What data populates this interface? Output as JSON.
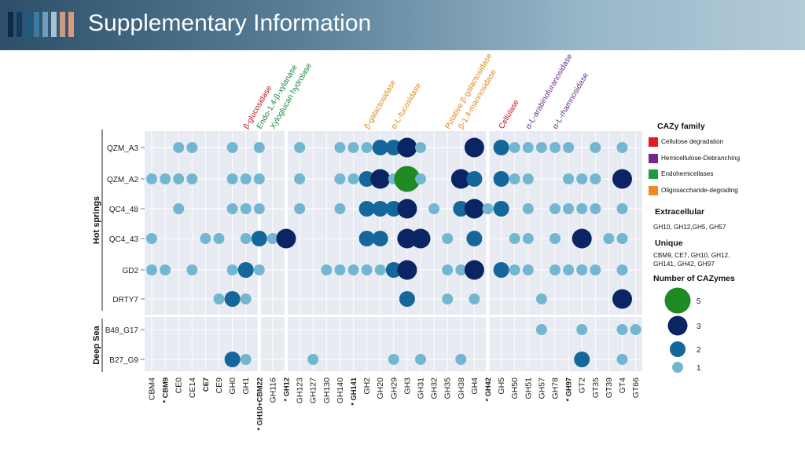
{
  "slide": {
    "title": "Supplementary Information",
    "stripe_colors": [
      "#0f2a48",
      "#123a5c",
      "#1e5b80",
      "#3b7ca2",
      "#6e9eba",
      "#a6c2d2",
      "#c99a86",
      "#d99a7a"
    ]
  },
  "chart_data": {
    "type": "scatter",
    "x_categories": [
      "CBM4",
      "* CBM9",
      "CE0",
      "CE14",
      "CE7",
      "CE9",
      "GH0",
      "GH1",
      "* GH10+CBM22",
      "GH116",
      "* GH12",
      "GH123",
      "GH127",
      "GH130",
      "GH140",
      "* GH141",
      "GH2",
      "GH20",
      "GH29",
      "GH3",
      "GH31",
      "GH32",
      "GH35",
      "GH38",
      "GH4",
      "* GH42",
      "GH5",
      "GH50",
      "GH51",
      "GH57",
      "GH78",
      "* GH97",
      "GT2",
      "GT35",
      "GT39",
      "GT4",
      "GT66"
    ],
    "bold_categories": [
      "* CBM9",
      "CE7",
      "* GH10+CBM22",
      "* GH12",
      "* GH141",
      "* GH42",
      "* GH97"
    ],
    "highlight_columns": [
      "* GH10+CBM22",
      "* GH12",
      "* GH42"
    ],
    "y_categories": [
      "QZM_A3",
      "QZM_A2",
      "QC4_48",
      "QC4_43",
      "GD2",
      "DRTY7",
      "B48_G17",
      "B27_G9"
    ],
    "groups": [
      {
        "label": "Hot springs",
        "rows": [
          "QZM_A3",
          "QZM_A2",
          "QC4_48",
          "QC4_43",
          "GD2",
          "DRTY7"
        ]
      },
      {
        "label": "Deep Sea",
        "rows": [
          "B48_G17",
          "B27_G9"
        ]
      }
    ],
    "size_colors": {
      "1": "#72b6d2",
      "2": "#14679a",
      "3": "#0b2463",
      "5": "#1f8a24"
    },
    "points": [
      [
        "QZM_A3",
        "CE0",
        1
      ],
      [
        "QZM_A3",
        "CE14",
        1
      ],
      [
        "QZM_A3",
        "GH0",
        1
      ],
      [
        "QZM_A3",
        "* GH10+CBM22",
        1
      ],
      [
        "QZM_A3",
        "GH123",
        1
      ],
      [
        "QZM_A3",
        "GH140",
        1
      ],
      [
        "QZM_A3",
        "* GH141",
        1
      ],
      [
        "QZM_A3",
        "GH2",
        1
      ],
      [
        "QZM_A3",
        "GH20",
        2
      ],
      [
        "QZM_A3",
        "GH29",
        2
      ],
      [
        "QZM_A3",
        "GH3",
        3
      ],
      [
        "QZM_A3",
        "GH31",
        1
      ],
      [
        "QZM_A3",
        "GH4",
        3
      ],
      [
        "QZM_A3",
        "GH5",
        2
      ],
      [
        "QZM_A3",
        "GH50",
        1
      ],
      [
        "QZM_A3",
        "GH51",
        1
      ],
      [
        "QZM_A3",
        "GH57",
        1
      ],
      [
        "QZM_A3",
        "GH78",
        1
      ],
      [
        "QZM_A3",
        "* GH97",
        1
      ],
      [
        "QZM_A3",
        "GT35",
        1
      ],
      [
        "QZM_A3",
        "GT4",
        1
      ],
      [
        "QZM_A2",
        "CBM4",
        1
      ],
      [
        "QZM_A2",
        "* CBM9",
        1
      ],
      [
        "QZM_A2",
        "CE0",
        1
      ],
      [
        "QZM_A2",
        "CE14",
        1
      ],
      [
        "QZM_A2",
        "GH0",
        1
      ],
      [
        "QZM_A2",
        "GH1",
        1
      ],
      [
        "QZM_A2",
        "* GH10+CBM22",
        1
      ],
      [
        "QZM_A2",
        "GH123",
        1
      ],
      [
        "QZM_A2",
        "GH140",
        1
      ],
      [
        "QZM_A2",
        "* GH141",
        1
      ],
      [
        "QZM_A2",
        "GH2",
        2
      ],
      [
        "QZM_A2",
        "GH20",
        3
      ],
      [
        "QZM_A2",
        "GH29",
        1
      ],
      [
        "QZM_A2",
        "GH3",
        5
      ],
      [
        "QZM_A2",
        "GH31",
        1
      ],
      [
        "QZM_A2",
        "GH38",
        3
      ],
      [
        "QZM_A2",
        "GH4",
        2
      ],
      [
        "QZM_A2",
        "GH5",
        2
      ],
      [
        "QZM_A2",
        "GH50",
        1
      ],
      [
        "QZM_A2",
        "GH51",
        1
      ],
      [
        "QZM_A2",
        "* GH97",
        1
      ],
      [
        "QZM_A2",
        "GT2",
        1
      ],
      [
        "QZM_A2",
        "GT35",
        1
      ],
      [
        "QZM_A2",
        "GT4",
        3
      ],
      [
        "QC4_48",
        "CE0",
        1
      ],
      [
        "QC4_48",
        "GH0",
        1
      ],
      [
        "QC4_48",
        "GH1",
        1
      ],
      [
        "QC4_48",
        "* GH10+CBM22",
        1
      ],
      [
        "QC4_48",
        "GH123",
        1
      ],
      [
        "QC4_48",
        "GH140",
        1
      ],
      [
        "QC4_48",
        "GH2",
        2
      ],
      [
        "QC4_48",
        "GH20",
        2
      ],
      [
        "QC4_48",
        "GH29",
        2
      ],
      [
        "QC4_48",
        "GH3",
        3
      ],
      [
        "QC4_48",
        "GH32",
        1
      ],
      [
        "QC4_48",
        "GH38",
        2
      ],
      [
        "QC4_48",
        "GH4",
        3
      ],
      [
        "QC4_48",
        "* GH42",
        1
      ],
      [
        "QC4_48",
        "GH5",
        2
      ],
      [
        "QC4_48",
        "GH51",
        1
      ],
      [
        "QC4_48",
        "GH78",
        1
      ],
      [
        "QC4_48",
        "* GH97",
        1
      ],
      [
        "QC4_48",
        "GT2",
        1
      ],
      [
        "QC4_48",
        "GT35",
        1
      ],
      [
        "QC4_48",
        "GT4",
        1
      ],
      [
        "QC4_43",
        "CBM4",
        1
      ],
      [
        "QC4_43",
        "CE7",
        1
      ],
      [
        "QC4_43",
        "CE9",
        1
      ],
      [
        "QC4_43",
        "GH1",
        1
      ],
      [
        "QC4_43",
        "* GH10+CBM22",
        2
      ],
      [
        "QC4_43",
        "GH116",
        1
      ],
      [
        "QC4_43",
        "* GH12",
        3
      ],
      [
        "QC4_43",
        "GH2",
        2
      ],
      [
        "QC4_43",
        "GH20",
        2
      ],
      [
        "QC4_43",
        "GH3",
        3
      ],
      [
        "QC4_43",
        "GH31",
        3
      ],
      [
        "QC4_43",
        "GH35",
        1
      ],
      [
        "QC4_43",
        "GH4",
        2
      ],
      [
        "QC4_43",
        "GH50",
        1
      ],
      [
        "QC4_43",
        "GH51",
        1
      ],
      [
        "QC4_43",
        "GH78",
        1
      ],
      [
        "QC4_43",
        "GT2",
        3
      ],
      [
        "QC4_43",
        "GT39",
        1
      ],
      [
        "QC4_43",
        "GT4",
        1
      ],
      [
        "GD2",
        "CBM4",
        1
      ],
      [
        "GD2",
        "* CBM9",
        1
      ],
      [
        "GD2",
        "CE14",
        1
      ],
      [
        "GD2",
        "GH0",
        1
      ],
      [
        "GD2",
        "GH1",
        2
      ],
      [
        "GD2",
        "* GH10+CBM22",
        1
      ],
      [
        "GD2",
        "GH130",
        1
      ],
      [
        "GD2",
        "GH140",
        1
      ],
      [
        "GD2",
        "* GH141",
        1
      ],
      [
        "GD2",
        "GH2",
        1
      ],
      [
        "GD2",
        "GH20",
        1
      ],
      [
        "GD2",
        "GH29",
        2
      ],
      [
        "GD2",
        "GH3",
        3
      ],
      [
        "GD2",
        "GH35",
        1
      ],
      [
        "GD2",
        "GH38",
        1
      ],
      [
        "GD2",
        "GH4",
        3
      ],
      [
        "GD2",
        "GH5",
        2
      ],
      [
        "GD2",
        "GH50",
        1
      ],
      [
        "GD2",
        "GH51",
        1
      ],
      [
        "GD2",
        "GH78",
        1
      ],
      [
        "GD2",
        "* GH97",
        1
      ],
      [
        "GD2",
        "GT2",
        1
      ],
      [
        "GD2",
        "GT35",
        1
      ],
      [
        "GD2",
        "GT4",
        1
      ],
      [
        "DRTY7",
        "CE9",
        1
      ],
      [
        "DRTY7",
        "GH0",
        2
      ],
      [
        "DRTY7",
        "GH1",
        1
      ],
      [
        "DRTY7",
        "GH3",
        2
      ],
      [
        "DRTY7",
        "GH35",
        1
      ],
      [
        "DRTY7",
        "GH4",
        1
      ],
      [
        "DRTY7",
        "GH57",
        1
      ],
      [
        "DRTY7",
        "GT4",
        3
      ],
      [
        "B48_G17",
        "GH57",
        1
      ],
      [
        "B48_G17",
        "GT2",
        1
      ],
      [
        "B48_G17",
        "GT4",
        1
      ],
      [
        "B48_G17",
        "GT66",
        1
      ],
      [
        "B27_G9",
        "GH0",
        2
      ],
      [
        "B27_G9",
        "GH1",
        1
      ],
      [
        "B27_G9",
        "GH127",
        1
      ],
      [
        "B27_G9",
        "GH29",
        1
      ],
      [
        "B27_G9",
        "GH31",
        1
      ],
      [
        "B27_G9",
        "GH38",
        1
      ],
      [
        "B27_G9",
        "GT2",
        2
      ],
      [
        "B27_G9",
        "GT4",
        1
      ]
    ],
    "top_annotations": [
      {
        "column": "GH1",
        "text": "β-glucosidase",
        "color": "#c0141f"
      },
      {
        "column": "* GH10+CBM22",
        "text": "Endo-1,4-β-xylanase",
        "color": "#138a3c"
      },
      {
        "column": "GH116",
        "text": "Xyloglucan hydrolase",
        "color": "#138a3c"
      },
      {
        "column": "GH2",
        "text": "β-galactosidase",
        "color": "#e0871e"
      },
      {
        "column": "GH29",
        "text": "α-L-fucosidase",
        "color": "#e0871e"
      },
      {
        "column": "GH35",
        "text": "Putative β-galactosidase",
        "color": "#e0871e"
      },
      {
        "column": "GH38",
        "text": "β-1,4-mannosidase",
        "color": "#e0871e"
      },
      {
        "column": "GH5",
        "text": "Cellulase",
        "color": "#c0141f"
      },
      {
        "column": "GH51",
        "text": "α-L-arabinofuranosidase",
        "color": "#6a2c8a"
      },
      {
        "column": "GH78",
        "text": "α-L-rhamnosidase",
        "color": "#6a2c8a"
      }
    ]
  },
  "legend": {
    "family_title": "CAZy family",
    "families": [
      {
        "label": "Cellulose degradation",
        "color": "#e01b24"
      },
      {
        "label": "Hemicellulose-Debranching",
        "color": "#6f2a8c"
      },
      {
        "label": "Endohemicellases",
        "color": "#1f9a3c"
      },
      {
        "label": "Oligosaccharide-degrading",
        "color": "#ef8a1c"
      }
    ],
    "extracellular_title": "Extracellular",
    "extracellular_text": "GH10, GH12,GH5, GH57",
    "unique_title": "Unique",
    "unique_line1": "CBM9,  CE7, GH10, GH12,",
    "unique_line2": "GH141, GH42, GH97",
    "count_title": "Number of CAZymes",
    "count_levels": [
      {
        "label": "5",
        "color": "#1f8a24"
      },
      {
        "label": "3",
        "color": "#0b2463"
      },
      {
        "label": "2",
        "color": "#14679a"
      },
      {
        "label": "1",
        "color": "#72b6d2"
      }
    ]
  }
}
